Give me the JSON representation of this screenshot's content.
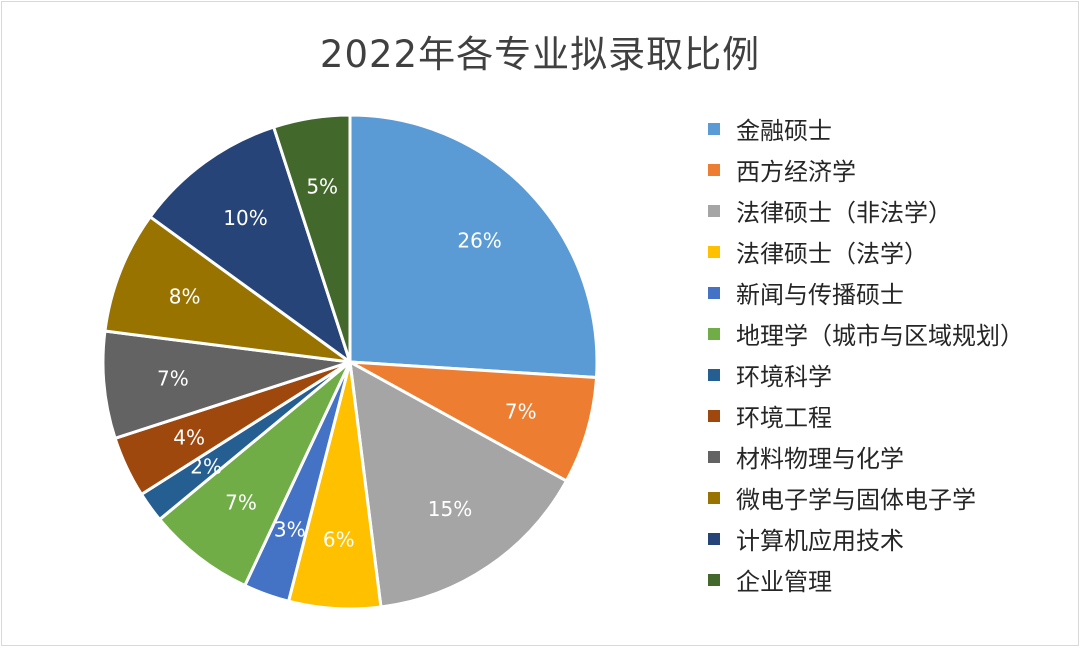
{
  "chart_data": {
    "type": "pie",
    "title": "2022年各专业拟录取比例",
    "legend_position": "right",
    "slices": [
      {
        "label": "金融硕士",
        "value": 26,
        "display": "26%",
        "color": "#5B9BD5"
      },
      {
        "label": "西方经济学",
        "value": 7,
        "display": "7%",
        "color": "#ED7D31"
      },
      {
        "label": "法律硕士（非法学）",
        "value": 15,
        "display": "15%",
        "color": "#A5A5A5"
      },
      {
        "label": "法律硕士（法学）",
        "value": 6,
        "display": "6%",
        "color": "#FFC000"
      },
      {
        "label": "新闻与传播硕士",
        "value": 3,
        "display": "3%",
        "color": "#4472C4"
      },
      {
        "label": "地理学（城市与区域规划）",
        "value": 7,
        "display": "7%",
        "color": "#70AD47"
      },
      {
        "label": "环境科学",
        "value": 2,
        "display": "2%",
        "color": "#255E91"
      },
      {
        "label": "环境工程",
        "value": 4,
        "display": "4%",
        "color": "#9E480E"
      },
      {
        "label": "材料物理与化学",
        "value": 7,
        "display": "7%",
        "color": "#636363"
      },
      {
        "label": "微电子学与固体电子学",
        "value": 8,
        "display": "8%",
        "color": "#997300"
      },
      {
        "label": "计算机应用技术",
        "value": 10,
        "display": "10%",
        "color": "#264478"
      },
      {
        "label": "企业管理",
        "value": 5,
        "display": "5%",
        "color": "#43682B"
      }
    ]
  }
}
